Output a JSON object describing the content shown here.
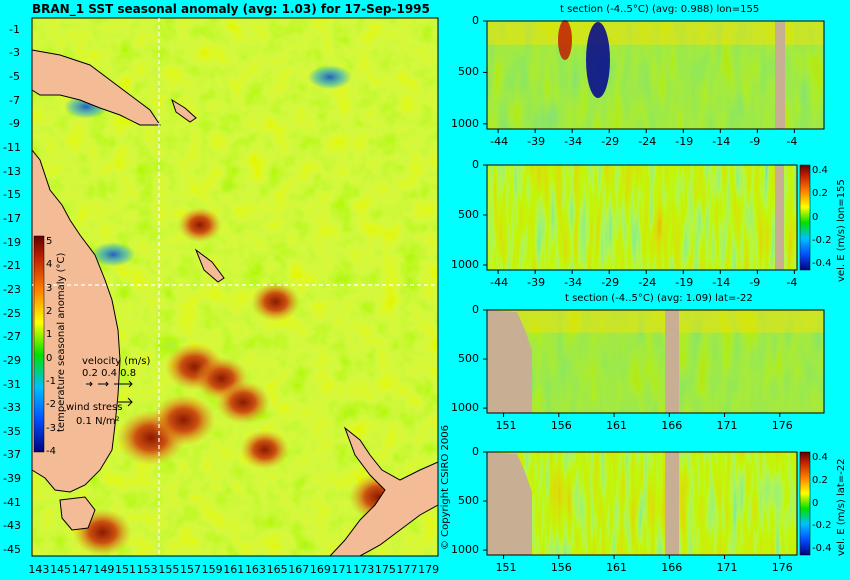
{
  "chart_data": [
    {
      "type": "heatmap",
      "title": "BRAN_1 SST seasonal anomaly (avg: 1.03) for 17-Sep-1995",
      "x_ticks": [
        "143",
        "145",
        "147",
        "149",
        "151",
        "153",
        "155",
        "157",
        "159",
        "161",
        "163",
        "165",
        "167",
        "169",
        "171",
        "173",
        "175",
        "177",
        "179"
      ],
      "y_ticks": [
        "-1",
        "-3",
        "-5",
        "-7",
        "-9",
        "-11",
        "-13",
        "-15",
        "-17",
        "-19",
        "-21",
        "-23",
        "-25",
        "-27",
        "-29",
        "-31",
        "-33",
        "-35",
        "-37",
        "-39",
        "-41",
        "-43",
        "-45"
      ],
      "xlim": [
        142.5,
        180.0
      ],
      "ylim": [
        -45.5,
        0.0
      ],
      "colorbar": {
        "label": "temperature seasonal anomaly (°C)",
        "ticks": [
          "5",
          "4",
          "3",
          "2",
          "1",
          "0",
          "-1",
          "-2",
          "-3",
          "-4"
        ],
        "range": [
          -4,
          5
        ]
      },
      "velocity_legend": {
        "label": "velocity (m/s)",
        "values": "0.2 0.4 0.8"
      },
      "wind_legend": {
        "label": "wind stress",
        "value": "0.1 N/m²"
      },
      "section_lines": {
        "lon": 155,
        "lat": -22
      },
      "hot_spots": [
        {
          "lon": 153.5,
          "lat": -35.5,
          "value": 4.5
        },
        {
          "lon": 156.5,
          "lat": -34.0,
          "value": 4.0
        },
        {
          "lon": 157.5,
          "lat": -29.5,
          "value": 3.5
        },
        {
          "lon": 160.0,
          "lat": -30.5,
          "value": 3.0
        },
        {
          "lon": 162.0,
          "lat": -32.5,
          "value": 3.0
        },
        {
          "lon": 165.0,
          "lat": -24.0,
          "value": 2.5
        },
        {
          "lon": 149.0,
          "lat": -43.5,
          "value": 3.5
        },
        {
          "lon": 174.5,
          "lat": -40.5,
          "value": 3.5
        },
        {
          "lon": 164.0,
          "lat": -36.5,
          "value": 2.5
        },
        {
          "lon": 158.0,
          "lat": -17.5,
          "value": 2.0
        }
      ],
      "cold_spots": [
        {
          "lon": 147.5,
          "lat": -7.5,
          "value": -1.0
        },
        {
          "lon": 150.0,
          "lat": -20.0,
          "value": -1.0
        },
        {
          "lon": 170.0,
          "lat": -5.0,
          "value": -1.0
        }
      ]
    },
    {
      "type": "heatmap",
      "title": "t section (-4..5°C) (avg: 0.988) lon=155",
      "x_ticks": [
        "-44",
        "-39",
        "-34",
        "-29",
        "-24",
        "-19",
        "-14",
        "-9",
        "-4"
      ],
      "xlim": [
        -45.5,
        0.0
      ],
      "y_ticks": [
        "0",
        "500",
        "1000"
      ],
      "ylim": [
        0,
        1050
      ]
    },
    {
      "type": "heatmap",
      "title": "",
      "colorbar": {
        "label": "vel. E (m/s) lon=155",
        "ticks": [
          "0.4",
          "0.2",
          "0",
          "-0.2",
          "-0.4"
        ],
        "range": [
          -0.45,
          0.45
        ]
      },
      "x_ticks": [
        "-44",
        "-39",
        "-34",
        "-29",
        "-24",
        "-19",
        "-14",
        "-9",
        "-4"
      ],
      "xlim": [
        -45.5,
        0.0
      ],
      "y_ticks": [
        "0",
        "500",
        "1000"
      ],
      "ylim": [
        0,
        1050
      ]
    },
    {
      "type": "heatmap",
      "title": "t section (-4..5°C) (avg: 1.09) lat=-22",
      "x_ticks": [
        "151",
        "156",
        "161",
        "166",
        "171",
        "176"
      ],
      "xlim": [
        149.5,
        180.0
      ],
      "y_ticks": [
        "0",
        "500",
        "1000"
      ],
      "ylim": [
        0,
        1050
      ]
    },
    {
      "type": "heatmap",
      "title": "",
      "colorbar": {
        "label": "vel. E (m/s) lat=-22",
        "ticks": [
          "0.4",
          "0.2",
          "0",
          "-0.2",
          "-0.4"
        ],
        "range": [
          -0.45,
          0.45
        ]
      },
      "x_ticks": [
        "151",
        "156",
        "161",
        "166",
        "171",
        "176"
      ],
      "xlim": [
        149.5,
        180.0
      ],
      "y_ticks": [
        "0",
        "500",
        "1000"
      ],
      "ylim": [
        0,
        1050
      ]
    }
  ],
  "copyright": "© Copyright CSIRO 2006",
  "colors": {
    "background": "#00ffff",
    "land": "#f4bc96",
    "section_land": "#c8ae93"
  }
}
